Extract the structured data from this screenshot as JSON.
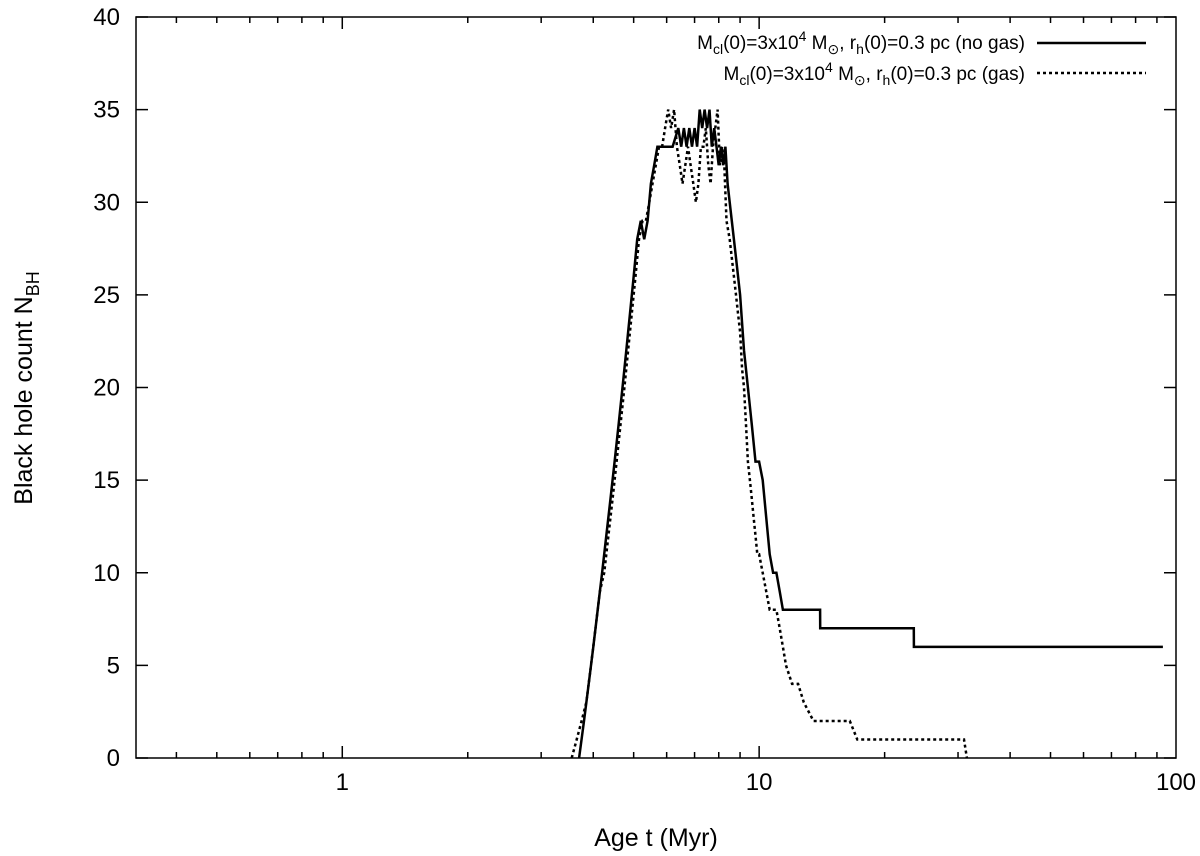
{
  "chart_data": {
    "type": "line",
    "title": "",
    "xlabel": "Age t (Myr)",
    "ylabel": {
      "main": "Black hole count N",
      "sub": "BH"
    },
    "x_scale": "log",
    "xlim": [
      0.32,
      100
    ],
    "ylim": [
      0,
      40
    ],
    "x_ticks": [
      {
        "value": 1,
        "label": "1"
      },
      {
        "value": 10,
        "label": "10"
      },
      {
        "value": 100,
        "label": "100"
      }
    ],
    "y_ticks": [
      {
        "value": 0,
        "label": "0"
      },
      {
        "value": 5,
        "label": "5"
      },
      {
        "value": 10,
        "label": "10"
      },
      {
        "value": 15,
        "label": "15"
      },
      {
        "value": 20,
        "label": "20"
      },
      {
        "value": 25,
        "label": "25"
      },
      {
        "value": 30,
        "label": "30"
      },
      {
        "value": 35,
        "label": "35"
      },
      {
        "value": 40,
        "label": "40"
      }
    ],
    "grid": false,
    "legend_position": "top-right",
    "series": [
      {
        "name": "Mcl(0)=3x10^4 M⊙, rh(0)=0.3 pc (no gas)",
        "style": "solid",
        "color": "#000000",
        "legend": {
          "M": "M",
          "cl": "cl",
          "a": "(0)=3x10",
          "exp": "4",
          "b": " M",
          "sun": "⊙",
          "c": ", r",
          "h": "h",
          "d": "(0)=0.3 pc (no gas)"
        },
        "x": [
          3.7,
          3.8,
          3.9,
          4.0,
          4.1,
          4.2,
          4.3,
          4.4,
          4.5,
          4.6,
          4.7,
          4.8,
          4.9,
          5.0,
          5.1,
          5.2,
          5.3,
          5.4,
          5.5,
          5.6,
          5.7,
          5.8,
          5.9,
          6.0,
          6.2,
          6.4,
          6.5,
          6.6,
          6.7,
          6.8,
          6.9,
          7.0,
          7.1,
          7.2,
          7.3,
          7.4,
          7.5,
          7.6,
          7.7,
          7.8,
          7.9,
          8.0,
          8.1,
          8.2,
          8.3,
          8.4,
          8.5,
          8.6,
          8.8,
          9.0,
          9.2,
          9.4,
          9.6,
          9.8,
          10.0,
          10.2,
          10.4,
          10.6,
          10.8,
          11.0,
          11.2,
          11.4,
          12.0,
          13.0,
          14.0,
          14.01,
          18.0,
          23.5,
          23.51,
          40.0,
          60.0,
          93.0
        ],
        "y": [
          0,
          2,
          4,
          6,
          8,
          10,
          12,
          14,
          16,
          18,
          20,
          22,
          24,
          26,
          28,
          29,
          28,
          29,
          31,
          32,
          33,
          33,
          33,
          33,
          33,
          34,
          33,
          34,
          33,
          34,
          33,
          34,
          33,
          35,
          34,
          35,
          34,
          35,
          33,
          34,
          33,
          32,
          33,
          32,
          33,
          31,
          30,
          29,
          27,
          25,
          22,
          20,
          18,
          16,
          16,
          15,
          13,
          11,
          10,
          10,
          9,
          8,
          8,
          8,
          8,
          7,
          7,
          7,
          6,
          6,
          6,
          6
        ]
      },
      {
        "name": "Mcl(0)=3x10^4 M⊙, rh(0)=0.3 pc (gas)",
        "style": "dotted",
        "color": "#000000",
        "legend": {
          "M": "M",
          "cl": "cl",
          "a": "(0)=3x10",
          "exp": "4",
          "b": " M",
          "sun": "⊙",
          "c": ", r",
          "h": "h",
          "d": "(0)=0.3 pc (gas)"
        },
        "x": [
          3.55,
          3.65,
          3.75,
          3.85,
          3.95,
          4.05,
          4.15,
          4.25,
          4.35,
          4.45,
          4.55,
          4.65,
          4.75,
          4.85,
          4.95,
          5.05,
          5.15,
          5.25,
          5.35,
          5.45,
          5.55,
          5.65,
          5.75,
          5.85,
          5.95,
          6.05,
          6.15,
          6.25,
          6.35,
          6.45,
          6.55,
          6.65,
          6.75,
          6.85,
          6.95,
          7.05,
          7.15,
          7.25,
          7.35,
          7.45,
          7.55,
          7.65,
          7.75,
          7.85,
          7.95,
          8.05,
          8.15,
          8.25,
          8.35,
          8.5,
          8.6,
          8.7,
          8.8,
          8.9,
          9.0,
          9.1,
          9.2,
          9.3,
          9.4,
          9.5,
          9.6,
          9.7,
          9.8,
          9.9,
          10.0,
          10.2,
          10.4,
          10.6,
          10.8,
          11.0,
          11.2,
          11.4,
          11.6,
          12.0,
          12.4,
          12.8,
          13.5,
          14.5,
          15.5,
          16.5,
          17.2,
          17.8,
          18.5,
          20.0,
          22.0,
          25.0,
          28.0,
          31.0,
          31.5
        ],
        "y": [
          0,
          1,
          2,
          3,
          5,
          7,
          9,
          10,
          12,
          14,
          16,
          18,
          20,
          22,
          24,
          26,
          28,
          29,
          29,
          30,
          31,
          32,
          33,
          33,
          34,
          35,
          34,
          35,
          33,
          32,
          31,
          32,
          33,
          32,
          31,
          30,
          31,
          33,
          33,
          34,
          32,
          31,
          33,
          34,
          35,
          32,
          33,
          32,
          29,
          28,
          27,
          26,
          25,
          24,
          23,
          21,
          20,
          18,
          16,
          15,
          14,
          13,
          12,
          11,
          11,
          10,
          9,
          8,
          8,
          8,
          7,
          6,
          5,
          4,
          4,
          3,
          2,
          2,
          2,
          2,
          1,
          1,
          1,
          1,
          1,
          1,
          1,
          1,
          0
        ]
      }
    ]
  }
}
